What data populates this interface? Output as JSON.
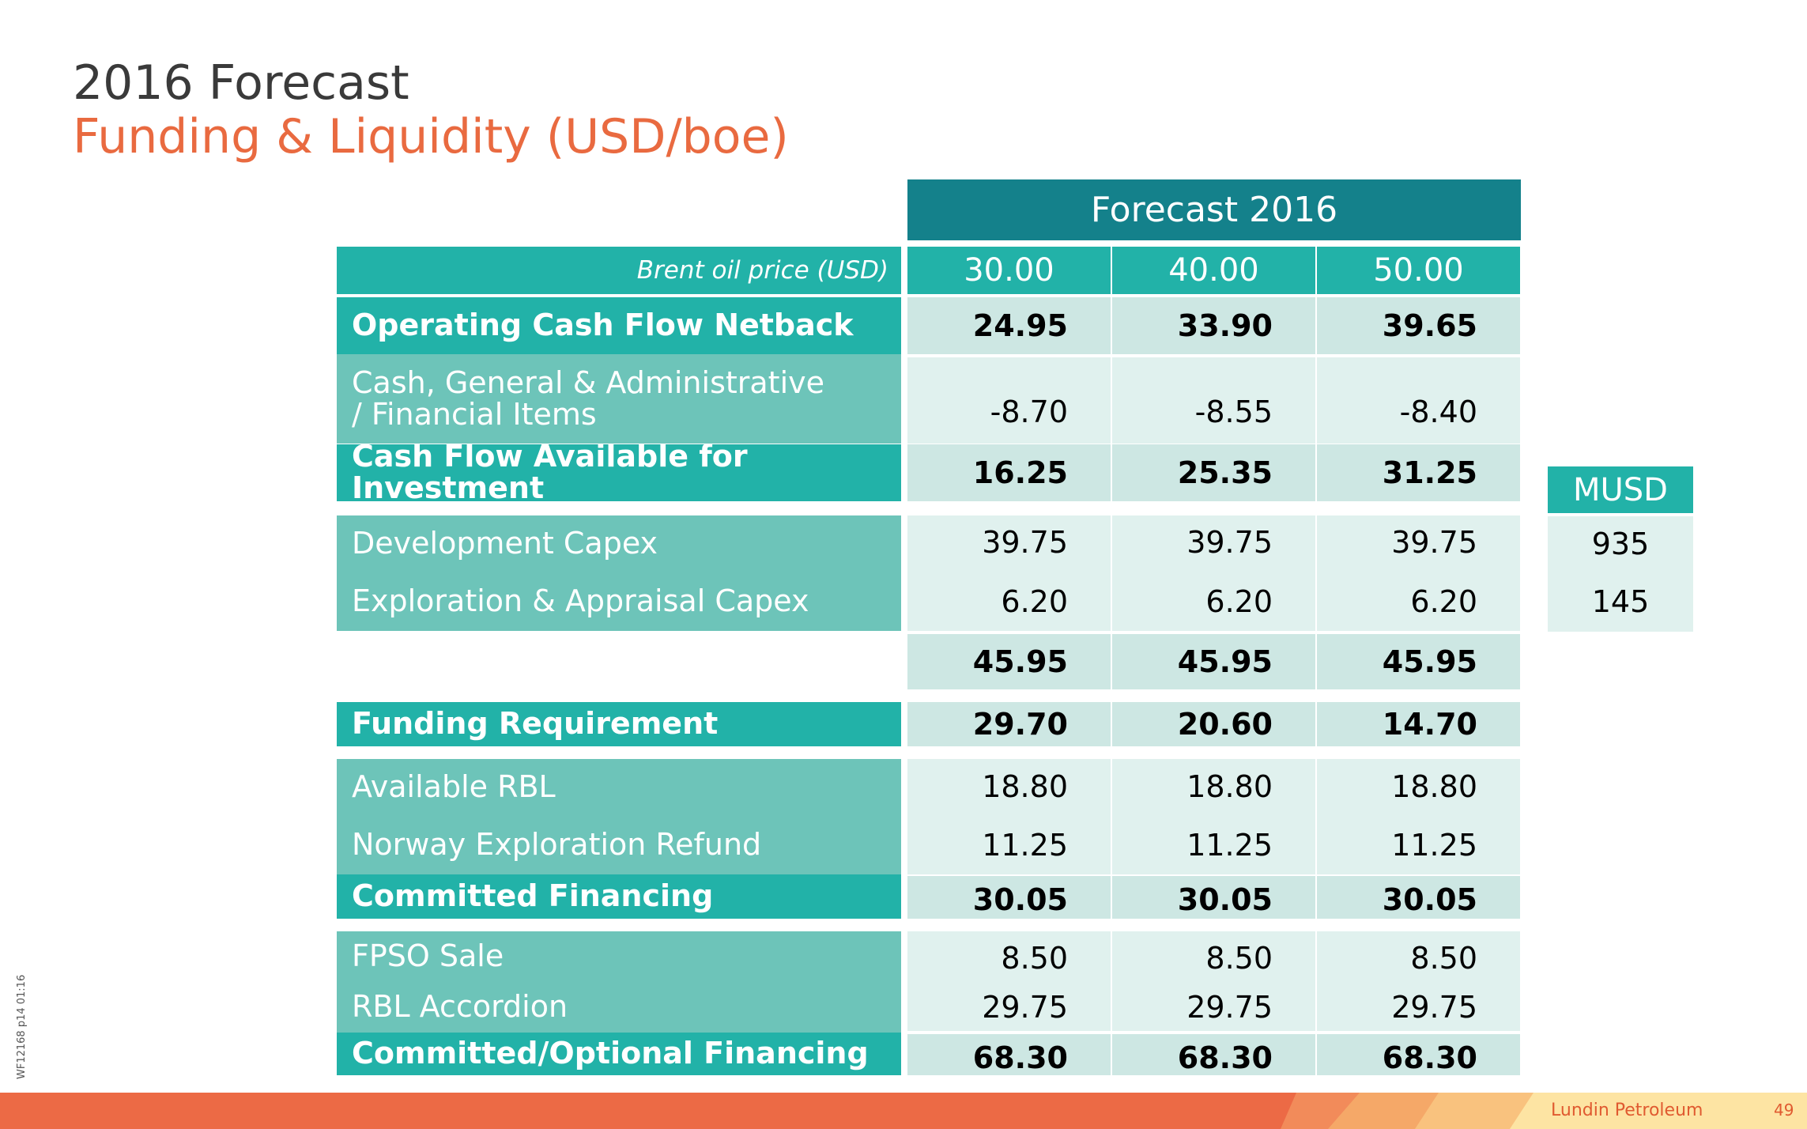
{
  "title": {
    "main": "2016 Forecast",
    "sub": "Funding & Liquidity (USD/boe)"
  },
  "table": {
    "group_header": "Forecast 2016",
    "price_label": "Brent oil price (USD)",
    "prices": [
      "30.00",
      "40.00",
      "50.00"
    ],
    "rows": [
      {
        "label": "Operating Cash Flow Netback",
        "values": [
          "24.95",
          "33.90",
          "39.65"
        ]
      },
      {
        "label": "Cash, General & Administrative / Financial Items",
        "label_line1": "Cash, General & Administrative",
        "label_line2": "/ Financial Items",
        "values": [
          "-8.70",
          "-8.55",
          "-8.40"
        ]
      },
      {
        "label": "Cash Flow Available for Investment",
        "values": [
          "16.25",
          "25.35",
          "31.25"
        ]
      },
      {
        "label": "Development Capex",
        "values": [
          "39.75",
          "39.75",
          "39.75"
        ]
      },
      {
        "label": "Exploration & Appraisal Capex",
        "values": [
          "6.20",
          "6.20",
          "6.20"
        ]
      },
      {
        "label": "",
        "values": [
          "45.95",
          "45.95",
          "45.95"
        ]
      },
      {
        "label": "Funding Requirement",
        "values": [
          "29.70",
          "20.60",
          "14.70"
        ]
      },
      {
        "label": "Available RBL",
        "values": [
          "18.80",
          "18.80",
          "18.80"
        ]
      },
      {
        "label": "Norway Exploration Refund",
        "values": [
          "11.25",
          "11.25",
          "11.25"
        ]
      },
      {
        "label": "Committed Financing",
        "values": [
          "30.05",
          "30.05",
          "30.05"
        ]
      },
      {
        "label": "FPSO Sale",
        "values": [
          "8.50",
          "8.50",
          "8.50"
        ]
      },
      {
        "label": "RBL Accordion",
        "values": [
          "29.75",
          "29.75",
          "29.75"
        ]
      },
      {
        "label": "Committed/Optional Financing",
        "values": [
          "68.30",
          "68.30",
          "68.30"
        ]
      }
    ]
  },
  "musd": {
    "header": "MUSD",
    "values": [
      "935",
      "145"
    ]
  },
  "footer": {
    "company": "Lundin Petroleum",
    "page": "49",
    "side_code": "WF12168 p14 01:16"
  },
  "colors": {
    "title_accent": "#e96a40",
    "teal_dark": "#14818b",
    "teal": "#22b2a8",
    "teal_light": "#6dc4b9",
    "cell_dark": "#cde7e3",
    "cell_light": "#e0f1ee",
    "footer_orange": "#ec6a45"
  }
}
